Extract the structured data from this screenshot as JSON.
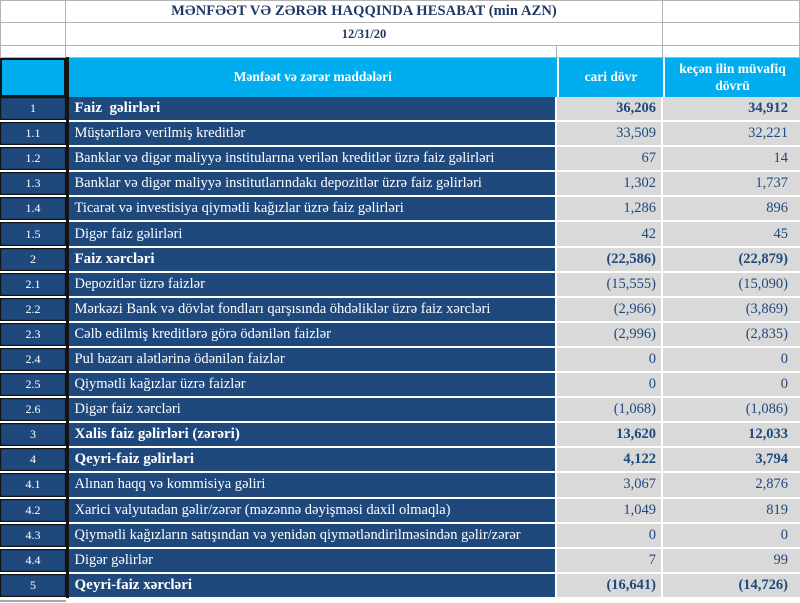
{
  "report": {
    "title": "MƏNFƏƏT VƏ ZƏRƏR HAQQINDA HESABAT (min AZN)",
    "date": "12/31/20"
  },
  "table": {
    "columns": {
      "items_header": "Mənfəət və zərər maddələri",
      "current_period": "cari dövr",
      "previous_period": "keçən ilin müvafiq dövrü"
    },
    "rows": [
      {
        "num": "1",
        "label": "Faiz  gəlirləri",
        "current": "36,206",
        "previous": "34,912",
        "bold": true
      },
      {
        "num": "1.1",
        "label": "Müştərilərə verilmiş kreditlər",
        "current": "33,509",
        "previous": "32,221",
        "bold": false
      },
      {
        "num": "1.2",
        "label": "Banklar və digər maliyyə institularına verilən kreditlər üzrə faiz gəlirləri",
        "current": "67",
        "previous": "14",
        "bold": false
      },
      {
        "num": "1.3",
        "label": "Banklar və digər maliyyə institutlarındakı depozitlər üzrə faiz gəlirləri",
        "current": "1,302",
        "previous": "1,737",
        "bold": false
      },
      {
        "num": "1.4",
        "label": "Ticarət və investisiya qiymətli kağızlar üzrə faiz gəlirləri",
        "current": "1,286",
        "previous": "896",
        "bold": false
      },
      {
        "num": "1.5",
        "label": "Digər faiz gəlirləri",
        "current": "42",
        "previous": "45",
        "bold": false
      },
      {
        "num": "2",
        "label": "Faiz xərcləri",
        "current": "(22,586)",
        "previous": "(22,879)",
        "bold": true
      },
      {
        "num": "2.1",
        "label": "Depozitlər üzrə faizlər",
        "current": "(15,555)",
        "previous": "(15,090)",
        "bold": false
      },
      {
        "num": "2.2",
        "label": "Mərkəzi Bank və dövlət fondları qarşısında öhdəliklər üzrə faiz xərcləri",
        "current": "(2,966)",
        "previous": "(3,869)",
        "bold": false
      },
      {
        "num": "2.3",
        "label": "Cəlb edilmiş kreditlərə görə ödənilən faizlər",
        "current": "(2,996)",
        "previous": "(2,835)",
        "bold": false
      },
      {
        "num": "2.4",
        "label": "Pul bazarı alətlərinə ödənilən faizlər",
        "current": "0",
        "previous": "0",
        "bold": false
      },
      {
        "num": "2.5",
        "label": "Qiymətli kağızlar üzrə faizlər",
        "current": "0",
        "previous": "0",
        "bold": false
      },
      {
        "num": "2.6",
        "label": "Digər faiz xərcləri",
        "current": "(1,068)",
        "previous": "(1,086)",
        "bold": false
      },
      {
        "num": "3",
        "label": "Xalis faiz gəlirləri (zərəri)",
        "current": "13,620",
        "previous": "12,033",
        "bold": true
      },
      {
        "num": "4",
        "label": "Qeyri-faiz gəlirləri",
        "current": "4,122",
        "previous": "3,794",
        "bold": true
      },
      {
        "num": "4.1",
        "label": "Alınan haqq və kommisiya gəliri",
        "current": "3,067",
        "previous": "2,876",
        "bold": false
      },
      {
        "num": "4.2",
        "label": "Xarici valyutadan gəlir/zərər (məzənnə dəyişməsi daxil olmaqla)",
        "current": "1,049",
        "previous": "819",
        "bold": false
      },
      {
        "num": "4.3",
        "label": "Qiymətli kağızların satışından və yenidən qiymətləndirilməsindən gəlir/zərər",
        "current": "0",
        "previous": "0",
        "bold": false
      },
      {
        "num": "4.4",
        "label": "Digər gəlirlər",
        "current": "7",
        "previous": "99",
        "bold": false
      },
      {
        "num": "5",
        "label": "Qeyri-faiz xərcləri",
        "current": "(16,641)",
        "previous": "(14,726)",
        "bold": true
      }
    ]
  },
  "colors": {
    "header_blue": "#00AEEF",
    "row_navy": "#1F497D",
    "value_gray": "#D9D9D9",
    "title_navy": "#1F3864"
  }
}
